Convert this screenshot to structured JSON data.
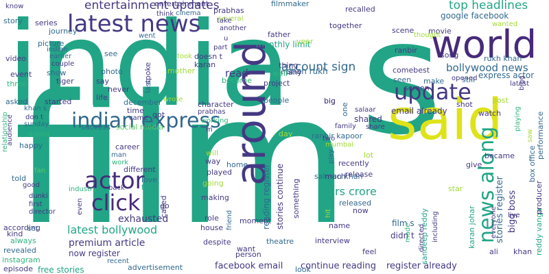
{
  "cloud": {
    "colors": {
      "teal": "#21a586",
      "purple": "#443983",
      "yellow": "#dee319",
      "green": "#5cc863",
      "blue": "#31688e",
      "lightgreen": "#a2da37",
      "seagreen": "#2fb47c",
      "darkpurple": "#472a7a"
    },
    "words": [
      {
        "text": "india",
        "color": "teal",
        "rotate": false
      },
      {
        "text": "s",
        "color": "teal",
        "rotate": false
      },
      {
        "text": "film",
        "color": "teal",
        "rotate": false
      },
      {
        "text": "said",
        "color": "yellow",
        "rotate": false
      },
      {
        "text": "world",
        "color": "darkpurple",
        "rotate": false
      },
      {
        "text": "around",
        "color": "purple",
        "rotate": true
      },
      {
        "text": "latest news",
        "color": "purple",
        "rotate": false
      },
      {
        "text": "update",
        "color": "purple",
        "rotate": false
      },
      {
        "text": "indian express",
        "color": "blue",
        "rotate": false
      },
      {
        "text": "actor",
        "color": "darkpurple",
        "rotate": false
      },
      {
        "text": "click",
        "color": "darkpurple",
        "rotate": false
      },
      {
        "text": "news along",
        "color": "teal",
        "rotate": true
      },
      {
        "text": "entertainment updates",
        "color": "purple",
        "rotate": false
      },
      {
        "text": "top headlines",
        "color": "teal",
        "rotate": false
      },
      {
        "text": "account sign",
        "color": "blue",
        "rotate": false
      },
      {
        "text": "bollywood news",
        "color": "blue",
        "rotate": false
      },
      {
        "text": "latest bollywood",
        "color": "teal",
        "rotate": false
      },
      {
        "text": "shah rukh",
        "color": "blue",
        "rotate": false
      },
      {
        "text": "premium article",
        "color": "purple",
        "rotate": false
      },
      {
        "text": "now register",
        "color": "purple",
        "rotate": false
      },
      {
        "text": "exhausted",
        "color": "purple",
        "rotate": false
      },
      {
        "text": "stories continue",
        "color": "purple",
        "rotate": true
      },
      {
        "text": "reading register",
        "color": "blue",
        "rotate": true
      },
      {
        "text": "rs crore",
        "color": "teal",
        "rotate": false
      },
      {
        "text": "facebook email",
        "color": "purple",
        "rotate": false
      },
      {
        "text": "continue reading",
        "color": "purple",
        "rotate": false
      },
      {
        "text": "register already",
        "color": "purple",
        "rotate": false
      },
      {
        "text": "stories register",
        "color": "blue",
        "rotate": true
      },
      {
        "text": "bigg boss",
        "color": "purple",
        "rotate": true
      },
      {
        "text": "read",
        "color": "purple",
        "rotate": false
      },
      {
        "text": "monthly limit",
        "color": "teal",
        "rotate": false
      },
      {
        "text": "email already",
        "color": "purple",
        "rotate": false
      },
      {
        "text": "shared",
        "color": "purple",
        "rotate": false
      },
      {
        "text": "google facebook",
        "color": "blue",
        "rotate": false
      },
      {
        "text": "express actor",
        "color": "blue",
        "rotate": false
      },
      {
        "text": "rukh khan",
        "color": "blue",
        "rotate": false
      },
      {
        "text": "ranbir kapoor",
        "color": "blue",
        "rotate": false
      },
      {
        "text": "salman khan",
        "color": "blue",
        "rotate": false
      },
      {
        "text": "film s",
        "color": "blue",
        "rotate": false
      },
      {
        "text": "didn t",
        "color": "purple",
        "rotate": false
      },
      {
        "text": "karan johar",
        "color": "teal",
        "rotate": true
      },
      {
        "text": "sandeep reddy",
        "color": "teal",
        "rotate": true
      },
      {
        "text": "reddy vanga",
        "color": "teal",
        "rotate": true
      },
      {
        "text": "box office",
        "color": "blue",
        "rotate": true
      },
      {
        "text": "producer",
        "color": "purple",
        "rotate": true
      },
      {
        "text": "performance",
        "color": "blue",
        "rotate": true
      },
      {
        "text": "free stories",
        "color": "teal",
        "rotate": false
      },
      {
        "text": "advertisement",
        "color": "blue",
        "rotate": false
      },
      {
        "text": "social media",
        "color": "green",
        "rotate": false
      },
      {
        "text": "instagram",
        "color": "seagreen",
        "rotate": false
      },
      {
        "text": "revealed",
        "color": "blue",
        "rotate": false
      },
      {
        "text": "according",
        "color": "purple",
        "rotate": false
      },
      {
        "text": "relationship",
        "color": "seagreen",
        "rotate": true
      },
      {
        "text": "entertainment",
        "color": "purple",
        "rotate": false
      },
      {
        "text": "journey",
        "color": "blue",
        "rotate": false
      },
      {
        "text": "filmmaker",
        "color": "blue",
        "rotate": false
      },
      {
        "text": "recalled",
        "color": "purple",
        "rotate": false
      },
      {
        "text": "prabhas",
        "color": "purple",
        "rotate": false
      },
      {
        "text": "several",
        "color": "lightgreen",
        "rotate": false
      },
      {
        "text": "cinema",
        "color": "blue",
        "rotate": false
      },
      {
        "text": "think",
        "color": "purple",
        "rotate": false
      },
      {
        "text": "know",
        "color": "purple",
        "rotate": false
      },
      {
        "text": "story",
        "color": "blue",
        "rotate": false
      },
      {
        "text": "series",
        "color": "purple",
        "rotate": false
      },
      {
        "text": "video",
        "color": "purple",
        "rotate": false
      },
      {
        "text": "picture",
        "color": "blue",
        "rotate": false
      },
      {
        "text": "indian",
        "color": "blue",
        "rotate": false
      },
      {
        "text": "earlier",
        "color": "blue",
        "rotate": false
      },
      {
        "text": "couple",
        "color": "purple",
        "rotate": false
      },
      {
        "text": "event",
        "color": "purple",
        "rotate": false
      },
      {
        "text": "show",
        "color": "blue",
        "rotate": false
      },
      {
        "text": "three",
        "color": "seagreen",
        "rotate": false
      },
      {
        "text": "tiger",
        "color": "purple",
        "rotate": false
      },
      {
        "text": "khan s",
        "color": "blue",
        "rotate": false
      },
      {
        "text": "asked",
        "color": "blue",
        "rotate": false
      },
      {
        "text": "started",
        "color": "purple",
        "rotate": false
      },
      {
        "text": "don t",
        "color": "purple",
        "rotate": false
      },
      {
        "text": "sunday",
        "color": "blue",
        "rotate": false
      },
      {
        "text": "audience",
        "color": "purple",
        "rotate": true
      },
      {
        "text": "happy",
        "color": "blue",
        "rotate": false
      },
      {
        "text": "added",
        "color": "seagreen",
        "rotate": false
      },
      {
        "text": "fan",
        "color": "green",
        "rotate": false
      },
      {
        "text": "told",
        "color": "blue",
        "rotate": false
      },
      {
        "text": "good",
        "color": "purple",
        "rotate": false
      },
      {
        "text": "dunki",
        "color": "purple",
        "rotate": false
      },
      {
        "text": "first",
        "color": "purple",
        "rotate": false
      },
      {
        "text": "director",
        "color": "purple",
        "rotate": false
      },
      {
        "text": "kind",
        "color": "purple",
        "rotate": false
      },
      {
        "text": "always",
        "color": "seagreen",
        "rotate": false
      },
      {
        "text": "set",
        "color": "blue",
        "rotate": false
      },
      {
        "text": "episode",
        "color": "purple",
        "rotate": false
      },
      {
        "text": "recent",
        "color": "blue",
        "rotate": false
      },
      {
        "text": "industry",
        "color": "seagreen",
        "rotate": false
      },
      {
        "text": "even",
        "color": "purple",
        "rotate": true
      },
      {
        "text": "back",
        "color": "purple",
        "rotate": false
      },
      {
        "text": "free",
        "color": "teal",
        "rotate": false
      },
      {
        "text": "love",
        "color": "blue",
        "rotate": false
      },
      {
        "text": "called",
        "color": "purple",
        "rotate": true
      },
      {
        "text": "go",
        "color": "purple",
        "rotate": false
      },
      {
        "text": "work",
        "color": "seagreen",
        "rotate": false
      },
      {
        "text": "man",
        "color": "blue",
        "rotate": false
      },
      {
        "text": "different",
        "color": "purple",
        "rotate": false
      },
      {
        "text": "success",
        "color": "blue",
        "rotate": false
      },
      {
        "text": "career",
        "color": "purple",
        "rotate": false
      },
      {
        "text": "came",
        "color": "purple",
        "rotate": false
      },
      {
        "text": "got",
        "color": "purple",
        "rotate": false
      },
      {
        "text": "time",
        "color": "purple",
        "rotate": false
      },
      {
        "text": "december",
        "color": "blue",
        "rotate": false
      },
      {
        "text": "life",
        "color": "purple",
        "rotate": false
      },
      {
        "text": "never",
        "color": "purple",
        "rotate": false
      },
      {
        "text": "say",
        "color": "purple",
        "rotate": false
      },
      {
        "text": "photo",
        "color": "blue",
        "rotate": false
      },
      {
        "text": "see",
        "color": "blue",
        "rotate": false
      },
      {
        "text": "went",
        "color": "blue",
        "rotate": false
      },
      {
        "text": "last",
        "color": "blue",
        "rotate": true
      },
      {
        "text": "spoke",
        "color": "purple",
        "rotate": true
      },
      {
        "text": "wrote",
        "color": "lightgreen",
        "rotate": false
      },
      {
        "text": "mother",
        "color": "lightgreen",
        "rotate": false
      },
      {
        "text": "took",
        "color": "lightgreen",
        "rotate": false
      },
      {
        "text": "doesn t",
        "color": "purple",
        "rotate": false
      },
      {
        "text": "karan",
        "color": "purple",
        "rotate": false
      },
      {
        "text": "become",
        "color": "seagreen",
        "rotate": false
      },
      {
        "text": "u",
        "color": "purple",
        "rotate": false
      },
      {
        "text": "part",
        "color": "purple",
        "rotate": false
      },
      {
        "text": "take",
        "color": "purple",
        "rotate": false
      },
      {
        "text": "another",
        "color": "purple",
        "rotate": false
      },
      {
        "text": "character",
        "color": "purple",
        "rotate": false
      },
      {
        "text": "working",
        "color": "seagreen",
        "rotate": false
      },
      {
        "text": "prabhas",
        "color": "purple",
        "rotate": false
      },
      {
        "text": "m",
        "color": "purple",
        "rotate": false
      },
      {
        "text": "will",
        "color": "lightgreen",
        "rotate": false
      },
      {
        "text": "way",
        "color": "purple",
        "rotate": false
      },
      {
        "text": "home",
        "color": "blue",
        "rotate": false
      },
      {
        "text": "played",
        "color": "purple",
        "rotate": false
      },
      {
        "text": "going",
        "color": "lightgreen",
        "rotate": false
      },
      {
        "text": "making",
        "color": "purple",
        "rotate": false
      },
      {
        "text": "role",
        "color": "purple",
        "rotate": false
      },
      {
        "text": "house",
        "color": "purple",
        "rotate": false
      },
      {
        "text": "despite",
        "color": "purple",
        "rotate": false
      },
      {
        "text": "friend",
        "color": "blue",
        "rotate": true
      },
      {
        "text": "moment",
        "color": "purple",
        "rotate": false
      },
      {
        "text": "want",
        "color": "purple",
        "rotate": false
      },
      {
        "text": "person",
        "color": "purple",
        "rotate": false
      },
      {
        "text": "theatre",
        "color": "blue",
        "rotate": false
      },
      {
        "text": "look",
        "color": "blue",
        "rotate": false
      },
      {
        "text": "people",
        "color": "blue",
        "rotate": false
      },
      {
        "text": "big",
        "color": "purple",
        "rotate": false
      },
      {
        "text": "one",
        "color": "blue",
        "rotate": true
      },
      {
        "text": "day",
        "color": "lightgreen",
        "rotate": false
      },
      {
        "text": "family",
        "color": "purple",
        "rotate": false
      },
      {
        "text": "share",
        "color": "purple",
        "rotate": false
      },
      {
        "text": "salaar",
        "color": "purple",
        "rotate": false
      },
      {
        "text": "two",
        "color": "purple",
        "rotate": false
      },
      {
        "text": "mumbai",
        "color": "lightgreen",
        "rotate": false
      },
      {
        "text": "lot",
        "color": "lightgreen",
        "rotate": false
      },
      {
        "text": "recently",
        "color": "purple",
        "rotate": false
      },
      {
        "text": "play",
        "color": "blue",
        "rotate": true
      },
      {
        "text": "much",
        "color": "purple",
        "rotate": false
      },
      {
        "text": "release",
        "color": "purple",
        "rotate": false
      },
      {
        "text": "something",
        "color": "purple",
        "rotate": true
      },
      {
        "text": "released",
        "color": "blue",
        "rotate": false
      },
      {
        "text": "now",
        "color": "purple",
        "rotate": false
      },
      {
        "text": "hit",
        "color": "lightgreen",
        "rotate": true
      },
      {
        "text": "name",
        "color": "purple",
        "rotate": false
      },
      {
        "text": "interview",
        "color": "purple",
        "rotate": false
      },
      {
        "text": "feel",
        "color": "purple",
        "rotate": false
      },
      {
        "text": "made",
        "color": "seagreen",
        "rotate": true
      },
      {
        "text": "directed",
        "color": "purple",
        "rotate": true
      },
      {
        "text": "including",
        "color": "purple",
        "rotate": true
      },
      {
        "text": "star",
        "color": "lightgreen",
        "rotate": false
      },
      {
        "text": "give",
        "color": "purple",
        "rotate": false
      },
      {
        "text": "became",
        "color": "purple",
        "rotate": false
      },
      {
        "text": "everyone",
        "color": "purple",
        "rotate": true
      },
      {
        "text": "live",
        "color": "purple",
        "rotate": false
      },
      {
        "text": "ali",
        "color": "purple",
        "rotate": false
      },
      {
        "text": "khan",
        "color": "purple",
        "rotate": false
      },
      {
        "text": "watch",
        "color": "purple",
        "rotate": false
      },
      {
        "text": "playing",
        "color": "seagreen",
        "rotate": true
      },
      {
        "text": "post",
        "color": "lightgreen",
        "rotate": false
      },
      {
        "text": "shot",
        "color": "purple",
        "rotate": false
      },
      {
        "text": "screen",
        "color": "purple",
        "rotate": false
      },
      {
        "text": "seen",
        "color": "blue",
        "rotate": false
      },
      {
        "text": "make",
        "color": "blue",
        "rotate": false
      },
      {
        "text": "still",
        "color": "blue",
        "rotate": false
      },
      {
        "text": "latest",
        "color": "purple",
        "rotate": false
      },
      {
        "text": "ranbir",
        "color": "purple",
        "rotate": false
      },
      {
        "text": "comebest",
        "color": "purple",
        "rotate": false
      },
      {
        "text": "opened",
        "color": "purple",
        "rotate": false
      },
      {
        "text": "song",
        "color": "purple",
        "rotate": false
      },
      {
        "text": "movie",
        "color": "purple",
        "rotate": false
      },
      {
        "text": "scene",
        "color": "purple",
        "rotate": false
      },
      {
        "text": "thought",
        "color": "lightgreen",
        "rotate": false
      },
      {
        "text": "wanted",
        "color": "lightgreen",
        "rotate": false
      },
      {
        "text": "together",
        "color": "purple",
        "rotate": false
      },
      {
        "text": "father",
        "color": "purple",
        "rotate": false
      },
      {
        "text": "year",
        "color": "lightgreen",
        "rotate": false
      },
      {
        "text": "thing",
        "color": "purple",
        "rotate": false
      },
      {
        "text": "many",
        "color": "purple",
        "rotate": false
      },
      {
        "text": "well",
        "color": "seagreen",
        "rotate": false
      },
      {
        "text": "project",
        "color": "purple",
        "rotate": false
      },
      {
        "text": "big",
        "color": "purple",
        "rotate": false
      },
      {
        "text": "bigg",
        "color": "purple",
        "rotate": true
      },
      {
        "text": "saw",
        "color": "lightgreen",
        "rotate": true
      }
    ]
  }
}
